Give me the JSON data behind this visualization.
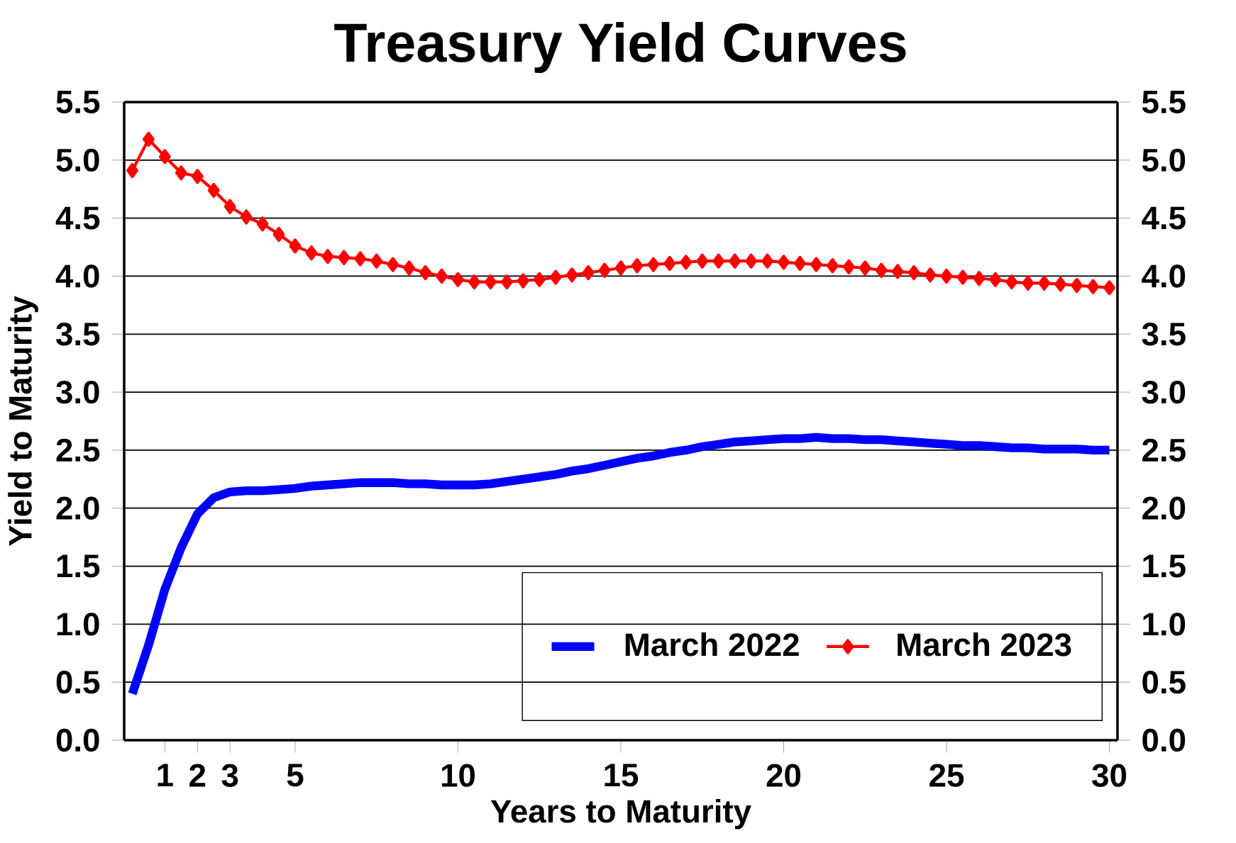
{
  "chart_data": {
    "type": "line",
    "title": "Treasury Yield Curves",
    "xlabel": "Years to Maturity",
    "ylabel": "Yield to Maturity",
    "x": [
      0,
      0.5,
      1,
      1.5,
      2,
      2.5,
      3,
      3.5,
      4,
      4.5,
      5,
      5.5,
      6,
      6.5,
      7,
      7.5,
      8,
      8.5,
      9,
      9.5,
      10,
      10.5,
      11,
      11.5,
      12,
      12.5,
      13,
      13.5,
      14,
      14.5,
      15,
      15.5,
      16,
      16.5,
      17,
      17.5,
      18,
      18.5,
      19,
      19.5,
      20,
      20.5,
      21,
      21.5,
      22,
      22.5,
      23,
      23.5,
      24,
      24.5,
      25,
      25.5,
      26,
      26.5,
      27,
      27.5,
      28,
      28.5,
      29,
      29.5,
      30
    ],
    "series": [
      {
        "name": "March 2022",
        "color": "#0000ff",
        "marker": "none",
        "values": [
          0.4,
          0.82,
          1.3,
          1.66,
          1.95,
          2.09,
          2.14,
          2.15,
          2.15,
          2.16,
          2.17,
          2.19,
          2.2,
          2.21,
          2.22,
          2.22,
          2.22,
          2.21,
          2.21,
          2.2,
          2.2,
          2.2,
          2.21,
          2.23,
          2.25,
          2.27,
          2.29,
          2.32,
          2.34,
          2.37,
          2.4,
          2.43,
          2.45,
          2.48,
          2.5,
          2.53,
          2.55,
          2.57,
          2.58,
          2.59,
          2.6,
          2.6,
          2.61,
          2.6,
          2.6,
          2.59,
          2.59,
          2.58,
          2.57,
          2.56,
          2.55,
          2.54,
          2.54,
          2.53,
          2.52,
          2.52,
          2.51,
          2.51,
          2.51,
          2.5,
          2.5
        ]
      },
      {
        "name": "March 2023",
        "color": "#ff0000",
        "marker": "diamond",
        "values": [
          4.91,
          5.18,
          5.03,
          4.89,
          4.86,
          4.74,
          4.6,
          4.51,
          4.45,
          4.36,
          4.26,
          4.2,
          4.17,
          4.16,
          4.15,
          4.13,
          4.1,
          4.07,
          4.03,
          4.0,
          3.97,
          3.95,
          3.95,
          3.95,
          3.96,
          3.97,
          3.99,
          4.01,
          4.03,
          4.05,
          4.07,
          4.09,
          4.1,
          4.11,
          4.12,
          4.13,
          4.13,
          4.13,
          4.13,
          4.13,
          4.12,
          4.11,
          4.1,
          4.09,
          4.08,
          4.07,
          4.05,
          4.04,
          4.03,
          4.01,
          4.0,
          3.99,
          3.98,
          3.97,
          3.95,
          3.94,
          3.94,
          3.93,
          3.92,
          3.91,
          3.9
        ]
      }
    ],
    "xlim": [
      -0.25,
      30.25
    ],
    "xticks": [
      1,
      2,
      3,
      5,
      10,
      15,
      20,
      25,
      30
    ],
    "ylim": [
      0,
      5.5
    ],
    "yticks": [
      {
        "value": 0,
        "label": "0.0"
      },
      {
        "value": 0.5,
        "label": "0.5"
      },
      {
        "value": 1,
        "label": "1.0"
      },
      {
        "value": 1.5,
        "label": "1.5"
      },
      {
        "value": 2,
        "label": "2.0"
      },
      {
        "value": 2.5,
        "label": "2.5"
      },
      {
        "value": 3,
        "label": "3.0"
      },
      {
        "value": 3.5,
        "label": "3.5"
      },
      {
        "value": 4,
        "label": "4.0"
      },
      {
        "value": 4.5,
        "label": "4.5"
      },
      {
        "value": 5,
        "label": "5.0"
      },
      {
        "value": 5.5,
        "label": "5.5"
      }
    ],
    "y2lim": [
      0,
      5.5
    ],
    "y2ticks": [
      {
        "value": 0,
        "label": "0.0"
      },
      {
        "value": 0.5,
        "label": "0.5"
      },
      {
        "value": 1,
        "label": "1.0"
      },
      {
        "value": 1.5,
        "label": "1.5"
      },
      {
        "value": 2,
        "label": "2.0"
      },
      {
        "value": 2.5,
        "label": "2.5"
      },
      {
        "value": 3,
        "label": "3.0"
      },
      {
        "value": 3.5,
        "label": "3.5"
      },
      {
        "value": 4,
        "label": "4.0"
      },
      {
        "value": 4.5,
        "label": "4.5"
      },
      {
        "value": 5,
        "label": "5.0"
      },
      {
        "value": 5.5,
        "label": "5.5"
      }
    ],
    "grid": "y",
    "legend": "bottom right",
    "line_style": "solid"
  }
}
